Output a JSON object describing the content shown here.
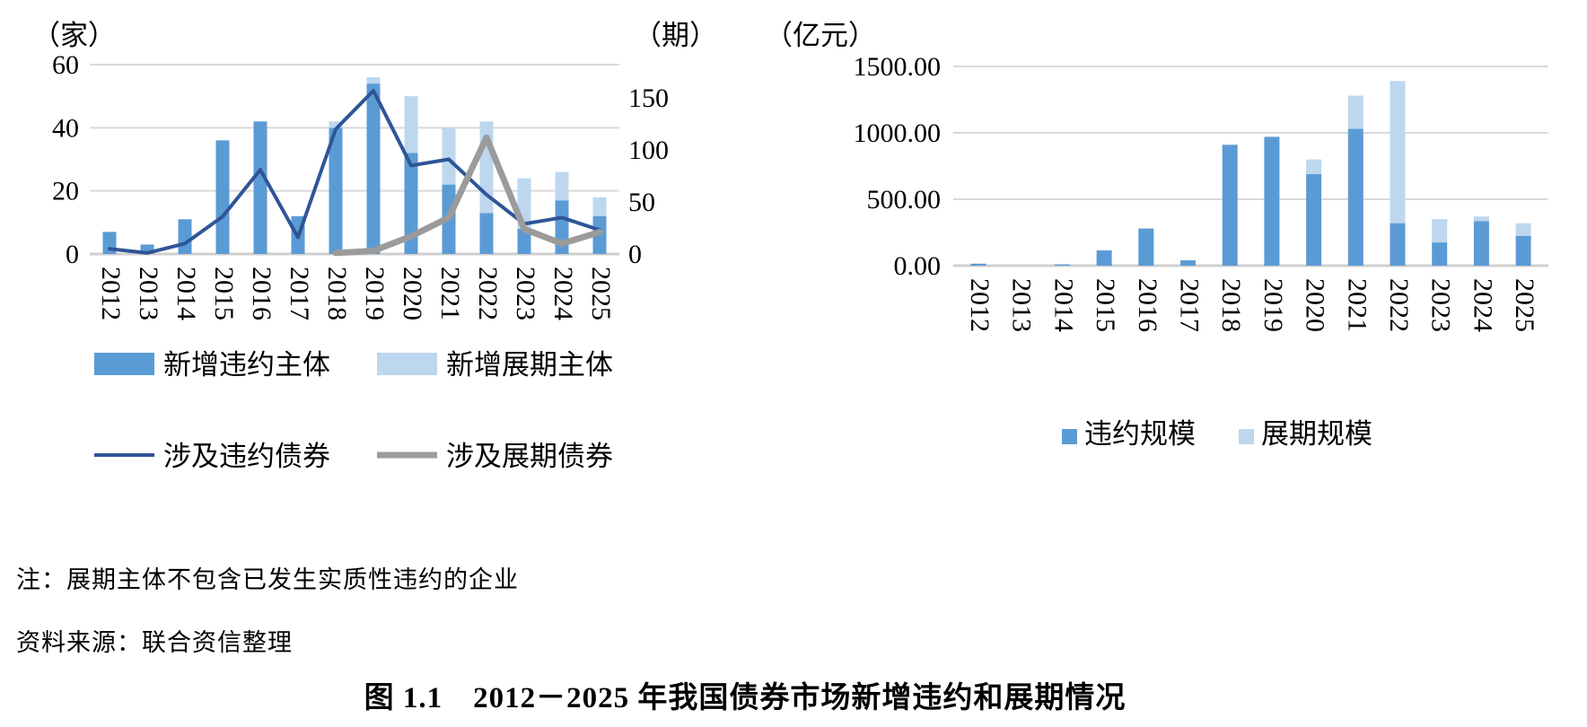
{
  "texts": {
    "note": "注：展期主体不包含已发生实质性违约的企业",
    "source": "资料来源：联合资信整理",
    "caption": "图 1.1　2012－2025 年我国债券市场新增违约和展期情况"
  },
  "chart_data": [
    {
      "type": "bar",
      "title": "新增违约和展期主体及债券（左图）",
      "unit_left": "（家）",
      "unit_right": "（期）",
      "categories": [
        "2012",
        "2013",
        "2014",
        "2015",
        "2016",
        "2017",
        "2018",
        "2019",
        "2020",
        "2021",
        "2022",
        "2023",
        "2024",
        "2025"
      ],
      "left_axis": {
        "ticks": [
          0,
          20,
          40,
          60
        ],
        "max": 60,
        "label": "家"
      },
      "right_axis": {
        "ticks": [
          0,
          50,
          100,
          150
        ],
        "max": 182,
        "label": "期"
      },
      "grid": true,
      "legend_position": "bottom",
      "series": [
        {
          "name": "新增违约主体",
          "type": "bar",
          "stack": "entities",
          "axis": "left",
          "color": "#5B9BD5",
          "values": [
            7,
            3,
            11,
            36,
            42,
            12,
            40,
            54,
            32,
            22,
            13,
            8,
            17,
            12
          ]
        },
        {
          "name": "新增展期主体",
          "type": "bar",
          "stack": "entities",
          "axis": "left",
          "color": "#BDD7EE",
          "values": [
            0,
            0,
            0,
            0,
            0,
            0,
            2,
            2,
            18,
            18,
            29,
            16,
            9,
            6
          ]
        },
        {
          "name": "涉及违约债券",
          "type": "line",
          "axis": "right",
          "color": "#2F5597",
          "width": 4,
          "values": [
            5,
            1,
            10,
            36,
            81,
            16,
            120,
            157,
            85,
            91,
            57,
            29,
            35,
            23
          ]
        },
        {
          "name": "涉及展期债券",
          "type": "line",
          "axis": "right",
          "color": "#9B9B9B",
          "width": 7,
          "values": [
            null,
            null,
            null,
            null,
            null,
            null,
            1,
            3,
            17,
            35,
            112,
            24,
            10,
            21
          ]
        }
      ]
    },
    {
      "type": "bar",
      "title": "违约和展期规模（右图）",
      "unit": "（亿元）",
      "categories": [
        "2012",
        "2013",
        "2014",
        "2015",
        "2016",
        "2017",
        "2018",
        "2019",
        "2020",
        "2021",
        "2022",
        "2023",
        "2024",
        "2025"
      ],
      "y_axis": {
        "tick_labels": [
          "0.00",
          "500.00",
          "1000.00",
          "1500.00"
        ],
        "tick_values": [
          0,
          500,
          1000,
          1500
        ],
        "max": 1500,
        "label": "亿元"
      },
      "grid": true,
      "legend_position": "bottom",
      "series": [
        {
          "name": "违约规模",
          "type": "bar",
          "stack": "scale",
          "color": "#5B9BD5",
          "values": [
            15,
            0,
            10,
            115,
            280,
            40,
            910,
            970,
            690,
            1030,
            320,
            175,
            335,
            225
          ]
        },
        {
          "name": "展期规模",
          "type": "bar",
          "stack": "scale",
          "color": "#BDD7EE",
          "values": [
            0,
            0,
            0,
            0,
            0,
            0,
            0,
            0,
            110,
            250,
            1070,
            175,
            35,
            95
          ]
        }
      ]
    }
  ]
}
